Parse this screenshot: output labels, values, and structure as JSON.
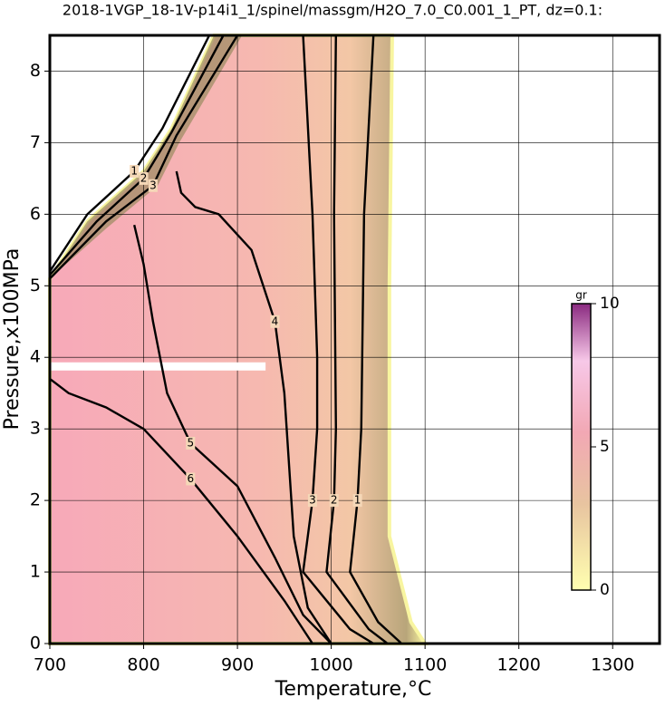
{
  "chart_data": {
    "type": "contour",
    "title": "2018-1VGP_18-1V-p14i1_1/spinel/massgm/H2O_7.0_C0.001_1_PT, dz=0.1:",
    "x_label": "Temperature,°C",
    "y_label": "Pressure,x100MPa",
    "xlim": [
      700,
      1350
    ],
    "ylim": [
      0,
      8.5
    ],
    "xticks": [
      700,
      800,
      900,
      1000,
      1100,
      1200,
      1300
    ],
    "yticks": [
      0,
      1,
      2,
      3,
      4,
      5,
      6,
      7,
      8
    ],
    "grid": true,
    "colorbar": {
      "label": "gr",
      "lim": [
        0,
        10
      ],
      "ticks": [
        0,
        5,
        10
      ]
    },
    "contours": [
      {
        "label": "1",
        "x": [
          1045,
          1035,
          1032,
          1028,
          1020,
          1050,
          1075
        ],
        "y": [
          8.5,
          6,
          3,
          2,
          1,
          0.3,
          0
        ]
      },
      {
        "label": "2",
        "x": [
          1005,
          1003,
          1005,
          1003,
          995,
          1040,
          1060
        ],
        "y": [
          8.5,
          6,
          3,
          2,
          1,
          0.2,
          0
        ]
      },
      {
        "label": "3",
        "x": [
          970,
          980,
          985,
          985,
          980,
          970,
          1020,
          1045
        ],
        "y": [
          8.5,
          6,
          4,
          3,
          2,
          1,
          0.2,
          0
        ]
      },
      {
        "label": "4",
        "x": [
          835,
          840,
          855,
          880,
          915,
          940,
          950,
          955,
          960,
          975,
          1000
        ],
        "y": [
          6.6,
          6.3,
          6.1,
          6,
          5.5,
          4.5,
          3.5,
          2.5,
          1.5,
          0.5,
          0
        ]
      },
      {
        "label": "5",
        "x": [
          790,
          800,
          810,
          825,
          850,
          900,
          940,
          970,
          1000
        ],
        "y": [
          5.85,
          5.3,
          4.5,
          3.5,
          2.8,
          2.2,
          1.2,
          0.4,
          0
        ]
      },
      {
        "label": "6",
        "x": [
          700,
          720,
          760,
          800,
          850,
          900,
          950,
          980
        ],
        "y": [
          3.7,
          3.5,
          3.3,
          3.0,
          2.3,
          1.5,
          0.6,
          0
        ]
      },
      {
        "label": "1",
        "x": [
          700,
          740,
          790,
          820,
          870
        ],
        "y": [
          5.2,
          6.0,
          6.6,
          7.2,
          8.5
        ]
      },
      {
        "label": "2",
        "x": [
          700,
          750,
          800,
          830,
          885
        ],
        "y": [
          5.15,
          5.9,
          6.5,
          7.15,
          8.5
        ]
      },
      {
        "label": "3",
        "x": [
          700,
          760,
          810,
          835,
          900
        ],
        "y": [
          5.1,
          5.9,
          6.4,
          7.1,
          8.5
        ]
      }
    ]
  }
}
